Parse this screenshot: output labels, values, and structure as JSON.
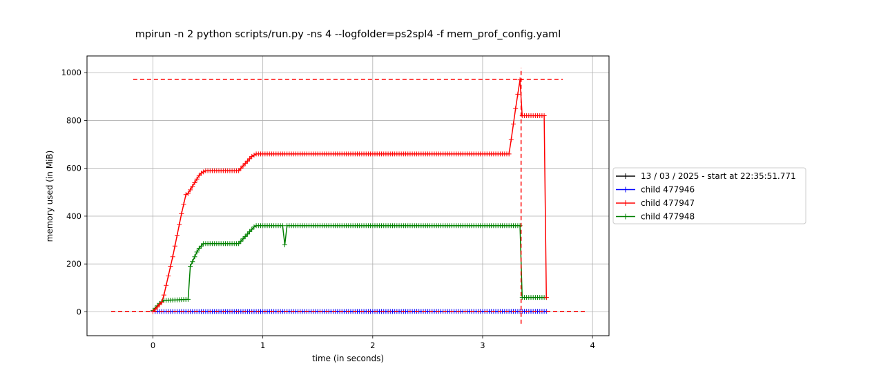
{
  "chart_data": {
    "type": "line",
    "title": "mpirun -n 2 python scripts/run.py -ns 4 --logfolder=ps2spl4 -f mem_prof_config.yaml",
    "xlabel": "time (in seconds)",
    "ylabel": "memory used (in MiB)",
    "xlim": [
      -0.6,
      4.15
    ],
    "ylim": [
      -100,
      1070
    ],
    "xticks": [
      0,
      1,
      2,
      3,
      4
    ],
    "yticks": [
      0,
      200,
      400,
      600,
      800,
      1000
    ],
    "grid": true,
    "legend_position": "center-right outside",
    "marker": "+",
    "series": [
      {
        "name": "13 / 03 / 2025 - start at 22:35:51.771",
        "color": "#000000",
        "x": [],
        "y": []
      },
      {
        "name": "child 477946",
        "color": "#0000ff",
        "x": [
          0.0,
          3.57
        ],
        "y": [
          1,
          2
        ],
        "sample_interval": 0.02
      },
      {
        "name": "child 477947",
        "color": "#ff0000",
        "x": [
          0.0,
          0.04,
          0.08,
          0.1,
          0.12,
          0.14,
          0.16,
          0.18,
          0.2,
          0.22,
          0.24,
          0.26,
          0.28,
          0.3,
          0.32,
          0.34,
          0.36,
          0.38,
          0.4,
          0.42,
          0.44,
          0.46,
          0.48,
          0.5,
          0.78,
          0.8,
          0.82,
          0.84,
          0.86,
          0.88,
          0.9,
          0.92,
          0.94,
          3.24,
          3.26,
          3.28,
          3.3,
          3.32,
          3.34,
          3.35,
          3.54,
          3.56,
          3.57,
          3.58
        ],
        "y": [
          0,
          20,
          40,
          70,
          110,
          150,
          190,
          230,
          275,
          320,
          365,
          410,
          450,
          490,
          495,
          510,
          525,
          540,
          555,
          570,
          580,
          585,
          590,
          590,
          590,
          600,
          610,
          620,
          630,
          640,
          650,
          655,
          660,
          660,
          720,
          785,
          850,
          910,
          970,
          820,
          820,
          820,
          820,
          60
        ],
        "sample_interval": 0.02
      },
      {
        "name": "child 477948",
        "color": "#008000",
        "x": [
          0.0,
          0.02,
          0.04,
          0.06,
          0.08,
          0.1,
          0.12,
          0.32,
          0.34,
          0.36,
          0.38,
          0.4,
          0.42,
          0.44,
          0.46,
          0.48,
          0.5,
          0.78,
          0.8,
          0.82,
          0.84,
          0.86,
          0.88,
          0.9,
          0.92,
          0.94,
          1.18,
          1.2,
          1.22,
          3.34,
          3.36,
          3.58
        ],
        "y": [
          5,
          15,
          25,
          35,
          42,
          48,
          48,
          52,
          190,
          210,
          230,
          250,
          265,
          275,
          285,
          285,
          285,
          285,
          295,
          305,
          315,
          325,
          335,
          345,
          355,
          360,
          360,
          280,
          360,
          360,
          60,
          60
        ],
        "sample_interval": 0.02
      }
    ],
    "reference_lines": [
      {
        "orientation": "horizontal",
        "y": 972,
        "x_range": [
          -0.18,
          3.73
        ],
        "color": "#ff0000",
        "style": "dashed"
      },
      {
        "orientation": "horizontal",
        "y": 2,
        "x_range": [
          -0.38,
          3.93
        ],
        "color": "#ff0000",
        "style": "dashed"
      },
      {
        "orientation": "vertical",
        "x": 3.35,
        "y_range": [
          -50,
          1020
        ],
        "color": "#ff0000",
        "style": "dashed"
      }
    ]
  }
}
